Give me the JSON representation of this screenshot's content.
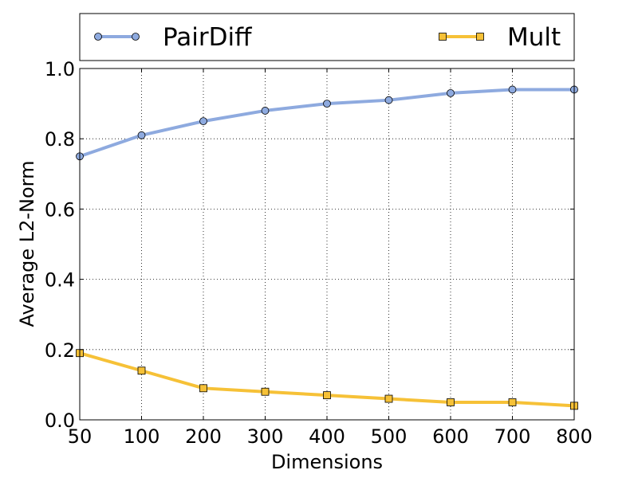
{
  "chart_data": {
    "type": "line",
    "title": "",
    "xlabel": "Dimensions",
    "ylabel": "Average L2-Norm",
    "categories": [
      "50",
      "100",
      "200",
      "300",
      "400",
      "500",
      "600",
      "700",
      "800"
    ],
    "ylim": [
      0.0,
      1.0
    ],
    "yticks": [
      "0.0",
      "0.2",
      "0.4",
      "0.6",
      "0.8",
      "1.0"
    ],
    "grid": true,
    "legend_position": "top",
    "series": [
      {
        "name": "PairDiff",
        "marker": "circle",
        "color": "#8eaadf",
        "values": [
          0.75,
          0.81,
          0.85,
          0.88,
          0.9,
          0.91,
          0.93,
          0.94,
          0.94
        ]
      },
      {
        "name": "Mult",
        "marker": "square",
        "color": "#f6c137",
        "values": [
          0.19,
          0.14,
          0.09,
          0.08,
          0.07,
          0.06,
          0.05,
          0.05,
          0.04
        ]
      }
    ]
  }
}
